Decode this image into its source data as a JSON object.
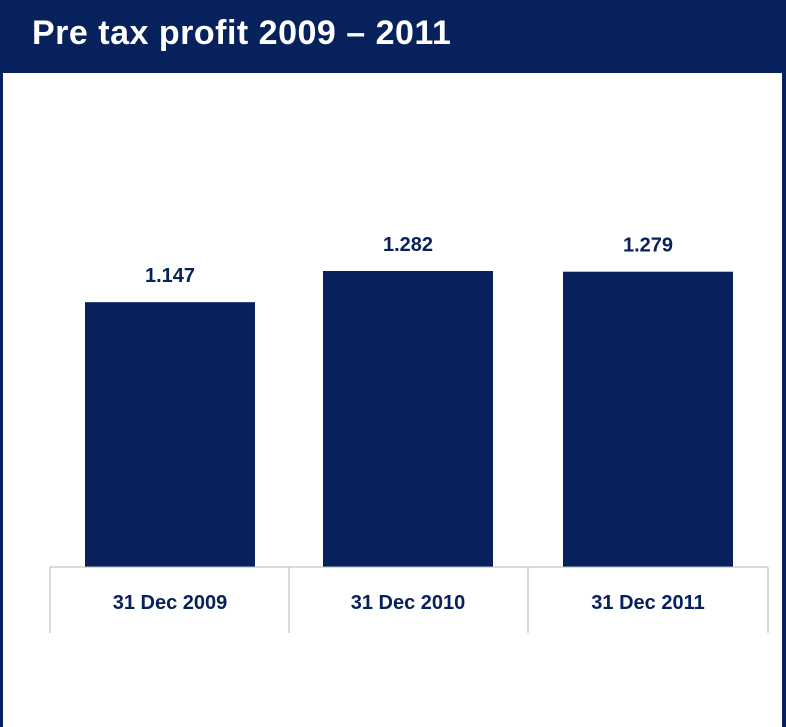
{
  "title": "Pre tax profit 2009 – 2011",
  "colors": {
    "brand": "#06215b",
    "bar": "#06215b",
    "grid": "#b7b7b7",
    "background": "#ffffff"
  },
  "chart_data": {
    "type": "bar",
    "title": "Pre tax profit 2009 – 2011",
    "categories": [
      "31 Dec 2009",
      "31 Dec 2010",
      "31 Dec 2011"
    ],
    "values": [
      1.147,
      1.282,
      1.279
    ],
    "value_labels": [
      "1.147",
      "1.282",
      "1.279"
    ],
    "xlabel": "",
    "ylabel": "",
    "ylim": [
      0,
      1.282
    ],
    "grid": false,
    "legend": "none"
  }
}
